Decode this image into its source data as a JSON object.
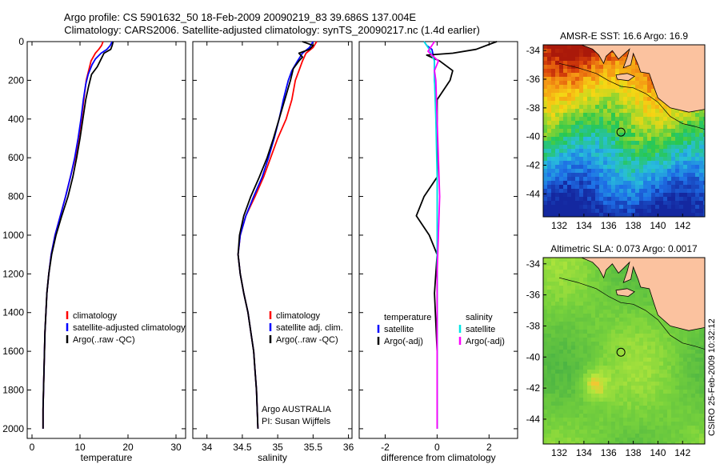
{
  "header": {
    "line1": "Argo profile: CS 5901632_50 18-Feb-2009 20090219_83 39.686S 137.004E",
    "line2": "Climatology: CARS2006. Satellite-adjusted climatology: synTS_20090217.nc (1.4d earlier)"
  },
  "side_label": "CSIRO 25-Feb-2009 10:32:12",
  "colors": {
    "clim": "#ff0000",
    "sat": "#0000ff",
    "argo": "#000000",
    "sal_sat": "#00e5e5",
    "sal_argo": "#ff00ff",
    "land": "#fbc29f"
  },
  "chart_data": [
    {
      "type": "line",
      "id": "temperature",
      "xlabel": "temperature",
      "xlim": [
        -1,
        32
      ],
      "ylim": [
        2050,
        0
      ],
      "xticks": [
        0,
        10,
        20,
        30
      ],
      "yticks": [
        0,
        200,
        400,
        600,
        800,
        1000,
        1200,
        1400,
        1600,
        1800,
        2000
      ],
      "legend": [
        "climatology",
        "satellite-adjusted climatology",
        "Argo(..raw -QC)"
      ],
      "series": [
        {
          "name": "climatology",
          "color": "#ff0000",
          "points": [
            [
              14.8,
              0
            ],
            [
              14.5,
              20
            ],
            [
              13.9,
              40
            ],
            [
              13.2,
              60
            ],
            [
              12.3,
              100
            ],
            [
              11.8,
              150
            ],
            [
              11.3,
              200
            ],
            [
              10.8,
              300
            ],
            [
              10.3,
              400
            ],
            [
              9.7,
              500
            ],
            [
              9.0,
              600
            ],
            [
              8.0,
              700
            ],
            [
              7.0,
              800
            ],
            [
              5.9,
              900
            ],
            [
              4.8,
              1000
            ],
            [
              4.0,
              1100
            ],
            [
              3.5,
              1200
            ],
            [
              3.1,
              1300
            ],
            [
              2.9,
              1400
            ],
            [
              2.7,
              1500
            ],
            [
              2.6,
              1600
            ],
            [
              2.5,
              1700
            ],
            [
              2.4,
              1800
            ],
            [
              2.3,
              1900
            ],
            [
              2.3,
              2000
            ]
          ]
        },
        {
          "name": "satellite-adjusted climatology",
          "color": "#0000ff",
          "points": [
            [
              16.7,
              0
            ],
            [
              16.3,
              20
            ],
            [
              15.6,
              40
            ],
            [
              14.4,
              60
            ],
            [
              13.2,
              90
            ],
            [
              12.5,
              120
            ],
            [
              11.7,
              170
            ],
            [
              11.2,
              220
            ],
            [
              10.7,
              300
            ],
            [
              10.2,
              400
            ],
            [
              9.6,
              500
            ],
            [
              8.9,
              600
            ],
            [
              8.0,
              700
            ],
            [
              7.0,
              800
            ],
            [
              5.9,
              900
            ],
            [
              4.8,
              1000
            ],
            [
              4.0,
              1100
            ],
            [
              3.5,
              1200
            ],
            [
              3.1,
              1300
            ],
            [
              2.9,
              1400
            ],
            [
              2.7,
              1500
            ],
            [
              2.6,
              1600
            ],
            [
              2.5,
              1700
            ],
            [
              2.4,
              1800
            ],
            [
              2.3,
              1900
            ],
            [
              2.3,
              2000
            ]
          ]
        },
        {
          "name": "Argo(..raw -QC)",
          "color": "#000000",
          "points": [
            [
              16.9,
              0
            ],
            [
              16.7,
              20
            ],
            [
              16.4,
              40
            ],
            [
              15.0,
              60
            ],
            [
              14.6,
              80
            ],
            [
              14.2,
              100
            ],
            [
              13.6,
              130
            ],
            [
              12.4,
              170
            ],
            [
              11.8,
              230
            ],
            [
              11.2,
              300
            ],
            [
              10.6,
              400
            ],
            [
              10.0,
              500
            ],
            [
              9.3,
              600
            ],
            [
              8.5,
              700
            ],
            [
              7.5,
              800
            ],
            [
              6.2,
              900
            ],
            [
              5.0,
              1000
            ],
            [
              4.1,
              1100
            ],
            [
              3.5,
              1200
            ],
            [
              3.1,
              1300
            ],
            [
              2.9,
              1400
            ],
            [
              2.7,
              1500
            ],
            [
              2.6,
              1600
            ],
            [
              2.5,
              1700
            ],
            [
              2.4,
              1800
            ],
            [
              2.3,
              1900
            ],
            [
              2.3,
              2000
            ]
          ]
        }
      ]
    },
    {
      "type": "line",
      "id": "salinity",
      "xlabel": "salinity",
      "xlim": [
        33.8,
        36.05
      ],
      "ylim": [
        2050,
        0
      ],
      "xticks": [
        34,
        34.5,
        35,
        35.5,
        36
      ],
      "yticks": [
        0,
        200,
        400,
        600,
        800,
        1000,
        1200,
        1400,
        1600,
        1800,
        2000
      ],
      "legend": [
        "climatology",
        "satellite adj. clim.",
        "Argo(..raw -QC)"
      ],
      "annotations": [
        "Argo AUSTRALIA",
        "PI: Susan Wijffels"
      ],
      "series": [
        {
          "name": "climatology",
          "color": "#ff0000",
          "points": [
            [
              35.55,
              0
            ],
            [
              35.5,
              30
            ],
            [
              35.4,
              60
            ],
            [
              35.35,
              100
            ],
            [
              35.3,
              150
            ],
            [
              35.25,
              200
            ],
            [
              35.2,
              300
            ],
            [
              35.12,
              400
            ],
            [
              35.0,
              500
            ],
            [
              34.9,
              600
            ],
            [
              34.8,
              700
            ],
            [
              34.68,
              800
            ],
            [
              34.55,
              900
            ],
            [
              34.47,
              1000
            ],
            [
              34.44,
              1100
            ],
            [
              34.47,
              1200
            ],
            [
              34.52,
              1300
            ],
            [
              34.58,
              1400
            ],
            [
              34.62,
              1500
            ],
            [
              34.66,
              1600
            ],
            [
              34.68,
              1700
            ],
            [
              34.7,
              1800
            ],
            [
              34.71,
              1900
            ],
            [
              34.72,
              2000
            ]
          ]
        },
        {
          "name": "satellite adj. clim.",
          "color": "#0000ff",
          "points": [
            [
              35.5,
              0
            ],
            [
              35.45,
              30
            ],
            [
              35.35,
              60
            ],
            [
              35.28,
              100
            ],
            [
              35.2,
              150
            ],
            [
              35.15,
              200
            ],
            [
              35.08,
              300
            ],
            [
              35.02,
              400
            ],
            [
              34.95,
              500
            ],
            [
              34.87,
              600
            ],
            [
              34.78,
              700
            ],
            [
              34.66,
              800
            ],
            [
              34.55,
              900
            ],
            [
              34.47,
              1000
            ],
            [
              34.44,
              1100
            ],
            [
              34.47,
              1200
            ],
            [
              34.52,
              1300
            ],
            [
              34.58,
              1400
            ],
            [
              34.62,
              1500
            ],
            [
              34.66,
              1600
            ],
            [
              34.68,
              1700
            ],
            [
              34.7,
              1800
            ],
            [
              34.71,
              1900
            ],
            [
              34.72,
              2000
            ]
          ]
        },
        {
          "name": "Argo(..raw -QC)",
          "color": "#000000",
          "points": [
            [
              35.35,
              0
            ],
            [
              35.5,
              20
            ],
            [
              35.45,
              40
            ],
            [
              35.3,
              60
            ],
            [
              35.35,
              80
            ],
            [
              35.3,
              100
            ],
            [
              35.22,
              140
            ],
            [
              35.18,
              200
            ],
            [
              35.1,
              300
            ],
            [
              35.02,
              400
            ],
            [
              34.94,
              500
            ],
            [
              34.85,
              600
            ],
            [
              34.74,
              700
            ],
            [
              34.62,
              800
            ],
            [
              34.52,
              900
            ],
            [
              34.46,
              1000
            ],
            [
              34.44,
              1100
            ],
            [
              34.47,
              1200
            ],
            [
              34.52,
              1300
            ],
            [
              34.58,
              1400
            ],
            [
              34.62,
              1500
            ],
            [
              34.66,
              1600
            ],
            [
              34.68,
              1700
            ],
            [
              34.7,
              1800
            ],
            [
              34.71,
              1900
            ],
            [
              34.72,
              2000
            ]
          ]
        }
      ]
    },
    {
      "type": "line",
      "id": "difference",
      "xlabel": "difference from climatology",
      "xlim": [
        -3,
        3.1
      ],
      "ylim": [
        2050,
        0
      ],
      "xticks": [
        -2,
        0,
        2
      ],
      "yticks": [
        0,
        200,
        400,
        600,
        800,
        1000,
        1200,
        1400,
        1600,
        1800,
        2000
      ],
      "legend_titles": [
        "temperature",
        "salinity"
      ],
      "legend": [
        "satellite",
        "Argo(-adj)",
        "satellite",
        "Argo(-adj)"
      ],
      "series": [
        {
          "name": "satellite",
          "group": "temperature",
          "color": "#0000ff",
          "points": [
            [
              -0.5,
              0
            ],
            [
              -0.4,
              20
            ],
            [
              -0.2,
              40
            ],
            [
              -0.1,
              100
            ],
            [
              -0.1,
              200
            ],
            [
              0,
              400
            ],
            [
              0,
              800
            ],
            [
              0,
              1200
            ],
            [
              0,
              1600
            ],
            [
              0,
              2000
            ]
          ]
        },
        {
          "name": "Argo(-adj)",
          "group": "temperature",
          "color": "#000000",
          "points": [
            [
              2.3,
              0
            ],
            [
              2.1,
              10
            ],
            [
              1.5,
              40
            ],
            [
              0.6,
              60
            ],
            [
              -0.4,
              70
            ],
            [
              0.1,
              100
            ],
            [
              0.6,
              150
            ],
            [
              0.5,
              200
            ],
            [
              0,
              300
            ],
            [
              0,
              500
            ],
            [
              0,
              700
            ],
            [
              -0.5,
              800
            ],
            [
              -0.8,
              900
            ],
            [
              -0.3,
              1000
            ],
            [
              0,
              1100
            ],
            [
              -0.1,
              1300
            ],
            [
              0,
              1600
            ],
            [
              0,
              2000
            ]
          ]
        },
        {
          "name": "satellite",
          "group": "salinity",
          "color": "#00e5e5",
          "points": [
            [
              -0.5,
              0
            ],
            [
              -0.3,
              40
            ],
            [
              -0.1,
              100
            ],
            [
              -0.1,
              200
            ],
            [
              -0.05,
              400
            ],
            [
              0,
              700
            ],
            [
              0,
              1000
            ],
            [
              0,
              1400
            ],
            [
              0,
              2000
            ]
          ]
        },
        {
          "name": "Argo(-adj)",
          "group": "salinity",
          "color": "#ff00ff",
          "points": [
            [
              -0.1,
              0
            ],
            [
              -0.35,
              50
            ],
            [
              -0.2,
              70
            ],
            [
              0.05,
              100
            ],
            [
              -0.1,
              150
            ],
            [
              -0.05,
              200
            ],
            [
              0,
              400
            ],
            [
              0.05,
              600
            ],
            [
              0.1,
              800
            ],
            [
              0.05,
              1000
            ],
            [
              0,
              1200
            ],
            [
              0,
              1600
            ],
            [
              0,
              2000
            ]
          ]
        }
      ]
    },
    {
      "type": "heatmap",
      "id": "sst-map",
      "title": "AMSR-E SST: 16.6 Argo: 16.9",
      "xlim": [
        130.7,
        143.8
      ],
      "ylim": [
        -45.6,
        -33.6
      ],
      "xticks": [
        132,
        134,
        136,
        138,
        140,
        142
      ],
      "yticks": [
        -34,
        -36,
        -38,
        -40,
        -42,
        -44
      ],
      "float_position": [
        137.0,
        -39.69
      ]
    },
    {
      "type": "heatmap",
      "id": "sla-map",
      "title": "Altimetric SLA: 0.073 Argo: 0.0017",
      "xlim": [
        130.7,
        143.8
      ],
      "ylim": [
        -45.6,
        -33.6
      ],
      "xticks": [
        132,
        134,
        136,
        138,
        140,
        142
      ],
      "yticks": [
        -34,
        -36,
        -38,
        -40,
        -42,
        -44
      ],
      "float_position": [
        137.0,
        -39.69
      ]
    }
  ]
}
